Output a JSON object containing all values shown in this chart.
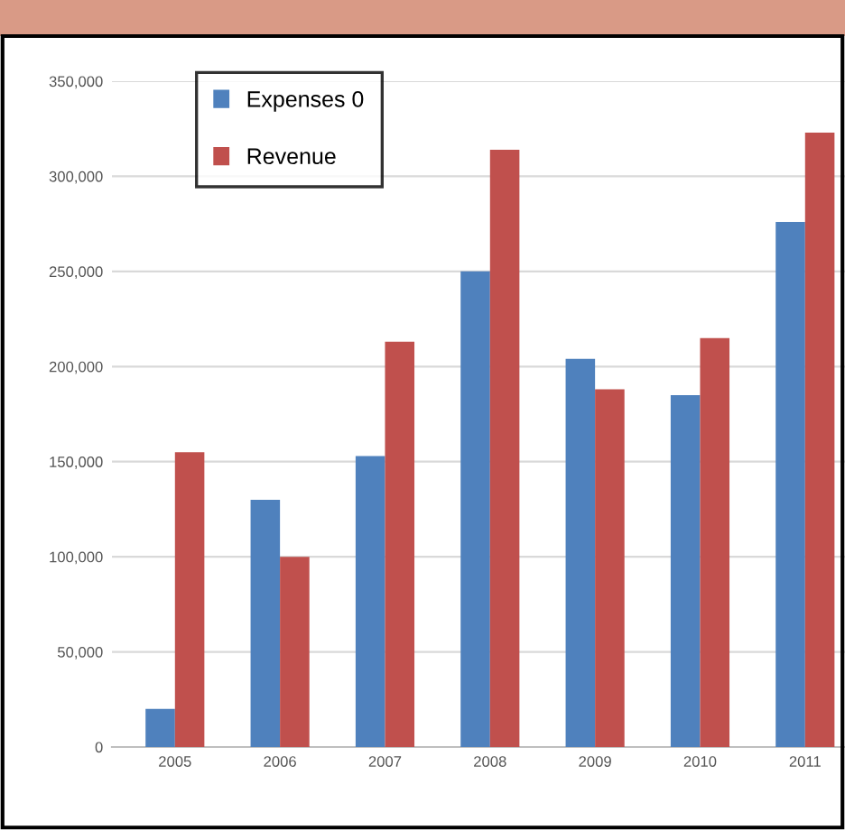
{
  "chart_data": {
    "type": "bar",
    "categories": [
      "2005",
      "2006",
      "2007",
      "2008",
      "2009",
      "2010",
      "2011"
    ],
    "series": [
      {
        "name": "Expenses 0",
        "color": "#4f81bd",
        "values": [
          20000,
          130000,
          153000,
          250000,
          204000,
          185000,
          276000
        ]
      },
      {
        "name": "Revenue",
        "color": "#c0504d",
        "values": [
          155000,
          100000,
          213000,
          314000,
          188000,
          215000,
          323000
        ]
      }
    ],
    "ylim": [
      0,
      350000
    ],
    "yticks": [
      {
        "value": 0,
        "label": "0"
      },
      {
        "value": 50000,
        "label": "50,000"
      },
      {
        "value": 100000,
        "label": "100,000"
      },
      {
        "value": 150000,
        "label": "150,000"
      },
      {
        "value": 200000,
        "label": "200,000"
      },
      {
        "value": 250000,
        "label": "250,000"
      },
      {
        "value": 300000,
        "label": "300,000"
      },
      {
        "value": 350000,
        "label": "350,000"
      }
    ],
    "grid": "y",
    "legend": "top left"
  }
}
